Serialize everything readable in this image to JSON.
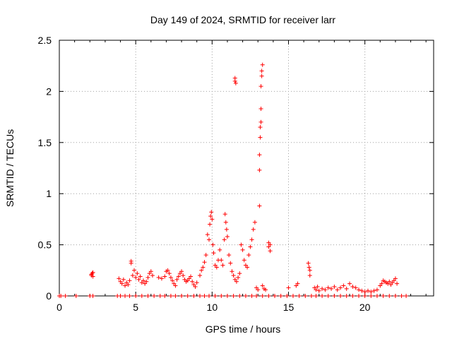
{
  "chart_data": {
    "type": "scatter",
    "title": "Day 149 of 2024, SRMTID for receiver larr",
    "xlabel": "GPS time / hours",
    "ylabel": "SRMTID / TECUs",
    "xlim": [
      0,
      24.5
    ],
    "ylim": [
      0,
      2.5
    ],
    "xticks": [
      0,
      5,
      10,
      15,
      20
    ],
    "xtick_labels": [
      "0",
      "5",
      "10",
      "15",
      "20"
    ],
    "yticks": [
      0,
      0.5,
      1,
      1.5,
      2,
      2.5
    ],
    "ytick_labels": [
      "0",
      "0.5",
      "1",
      "1.5",
      "2",
      "2.5"
    ],
    "grid": true,
    "marker": "+",
    "color": "#ff0000",
    "series": [
      {
        "name": "SRMTID",
        "points": [
          [
            0.0,
            0
          ],
          [
            0.1,
            0
          ],
          [
            0.4,
            0
          ],
          [
            1.1,
            0
          ],
          [
            2.0,
            0
          ],
          [
            2.2,
            0
          ],
          [
            2.1,
            0.2
          ],
          [
            2.1,
            0.21
          ],
          [
            2.15,
            0.22
          ],
          [
            2.2,
            0.19
          ],
          [
            2.2,
            0.23
          ],
          [
            3.8,
            0
          ],
          [
            3.9,
            0.17
          ],
          [
            4.0,
            0.14
          ],
          [
            4.1,
            0.12
          ],
          [
            4.2,
            0.16
          ],
          [
            4.3,
            0.1
          ],
          [
            4.4,
            0.13
          ],
          [
            4.5,
            0.11
          ],
          [
            4.6,
            0.15
          ],
          [
            4.7,
            0.34
          ],
          [
            4.7,
            0.32
          ],
          [
            4.8,
            0.2
          ],
          [
            4.9,
            0.25
          ],
          [
            5.0,
            0.18
          ],
          [
            5.1,
            0.22
          ],
          [
            5.2,
            0.16
          ],
          [
            5.3,
            0.19
          ],
          [
            5.4,
            0.13
          ],
          [
            5.5,
            0.15
          ],
          [
            5.6,
            0.12
          ],
          [
            5.7,
            0.14
          ],
          [
            5.8,
            0.18
          ],
          [
            5.9,
            0.22
          ],
          [
            6.0,
            0.24
          ],
          [
            6.1,
            0.2
          ],
          [
            4.0,
            0
          ],
          [
            4.3,
            0
          ],
          [
            4.6,
            0
          ],
          [
            5.0,
            0
          ],
          [
            5.4,
            0
          ],
          [
            5.8,
            0
          ],
          [
            6.2,
            0
          ],
          [
            6.6,
            0
          ],
          [
            6.9,
            0
          ],
          [
            7.3,
            0
          ],
          [
            7.6,
            0
          ],
          [
            8.0,
            0
          ],
          [
            8.4,
            0
          ],
          [
            8.8,
            0
          ],
          [
            9.2,
            0
          ],
          [
            9.5,
            0
          ],
          [
            9.8,
            0
          ],
          [
            10.2,
            0
          ],
          [
            10.6,
            0
          ],
          [
            11.0,
            0
          ],
          [
            11.4,
            0
          ],
          [
            11.8,
            0
          ],
          [
            12.2,
            0
          ],
          [
            12.6,
            0
          ],
          [
            12.9,
            0
          ],
          [
            13.3,
            0
          ],
          [
            13.7,
            0
          ],
          [
            14.1,
            0
          ],
          [
            14.5,
            0
          ],
          [
            14.9,
            0
          ],
          [
            15.3,
            0
          ],
          [
            15.7,
            0
          ],
          [
            16.1,
            0
          ],
          [
            16.5,
            0
          ],
          [
            16.8,
            0
          ],
          [
            17.2,
            0
          ],
          [
            17.6,
            0
          ],
          [
            18.0,
            0
          ],
          [
            18.4,
            0
          ],
          [
            18.8,
            0
          ],
          [
            19.2,
            0
          ],
          [
            19.6,
            0
          ],
          [
            20.0,
            0
          ],
          [
            20.4,
            0
          ],
          [
            20.8,
            0
          ],
          [
            21.2,
            0
          ],
          [
            21.6,
            0
          ],
          [
            22.0,
            0
          ],
          [
            22.4,
            0
          ],
          [
            22.7,
            0
          ],
          [
            6.5,
            0.18
          ],
          [
            6.7,
            0.17
          ],
          [
            6.9,
            0.19
          ],
          [
            7.0,
            0.24
          ],
          [
            7.1,
            0.25
          ],
          [
            7.2,
            0.22
          ],
          [
            7.3,
            0.18
          ],
          [
            7.4,
            0.15
          ],
          [
            7.5,
            0.12
          ],
          [
            7.6,
            0.1
          ],
          [
            7.7,
            0.16
          ],
          [
            7.8,
            0.19
          ],
          [
            7.9,
            0.22
          ],
          [
            8.0,
            0.24
          ],
          [
            8.1,
            0.2
          ],
          [
            8.2,
            0.16
          ],
          [
            8.3,
            0.14
          ],
          [
            8.4,
            0.15
          ],
          [
            8.5,
            0.17
          ],
          [
            8.6,
            0.19
          ],
          [
            8.7,
            0.14
          ],
          [
            8.8,
            0.11
          ],
          [
            8.9,
            0.09
          ],
          [
            9.0,
            0.13
          ],
          [
            9.2,
            0.2
          ],
          [
            9.3,
            0.25
          ],
          [
            9.4,
            0.28
          ],
          [
            9.5,
            0.33
          ],
          [
            9.6,
            0.4
          ],
          [
            9.7,
            0.6
          ],
          [
            9.8,
            0.55
          ],
          [
            9.85,
            0.7
          ],
          [
            9.9,
            0.78
          ],
          [
            9.95,
            0.82
          ],
          [
            10.0,
            0.75
          ],
          [
            10.05,
            0.5
          ],
          [
            10.1,
            0.42
          ],
          [
            10.2,
            0.3
          ],
          [
            10.3,
            0.28
          ],
          [
            10.4,
            0.35
          ],
          [
            10.5,
            0.45
          ],
          [
            10.6,
            0.35
          ],
          [
            10.7,
            0.3
          ],
          [
            10.8,
            0.55
          ],
          [
            10.85,
            0.8
          ],
          [
            10.9,
            0.72
          ],
          [
            10.95,
            0.65
          ],
          [
            11.0,
            0.58
          ],
          [
            11.1,
            0.4
          ],
          [
            11.2,
            0.32
          ],
          [
            11.3,
            0.24
          ],
          [
            11.4,
            0.2
          ],
          [
            11.5,
            0.16
          ],
          [
            11.6,
            0.14
          ],
          [
            11.7,
            0.18
          ],
          [
            11.8,
            0.22
          ],
          [
            11.9,
            0.5
          ],
          [
            12.0,
            0.45
          ],
          [
            12.1,
            0.35
          ],
          [
            12.2,
            0.3
          ],
          [
            12.3,
            0.28
          ],
          [
            12.4,
            0.4
          ],
          [
            12.5,
            0.48
          ],
          [
            12.6,
            0.55
          ],
          [
            12.7,
            0.65
          ],
          [
            12.8,
            0.72
          ],
          [
            11.5,
            2.13
          ],
          [
            11.5,
            2.1
          ],
          [
            11.55,
            2.08
          ],
          [
            12.9,
            0.08
          ],
          [
            13.0,
            0.06
          ],
          [
            13.1,
            0.88
          ],
          [
            13.1,
            1.23
          ],
          [
            13.1,
            1.38
          ],
          [
            13.15,
            1.55
          ],
          [
            13.15,
            1.65
          ],
          [
            13.2,
            1.7
          ],
          [
            13.2,
            1.83
          ],
          [
            13.2,
            2.05
          ],
          [
            13.25,
            2.15
          ],
          [
            13.25,
            2.2
          ],
          [
            13.3,
            2.26
          ],
          [
            13.3,
            0.1
          ],
          [
            13.4,
            0.07
          ],
          [
            13.5,
            0.06
          ],
          [
            13.7,
            0.52
          ],
          [
            13.7,
            0.48
          ],
          [
            13.8,
            0.5
          ],
          [
            13.8,
            0.44
          ],
          [
            15.0,
            0.08
          ],
          [
            15.5,
            0.1
          ],
          [
            15.6,
            0.12
          ],
          [
            16.3,
            0.32
          ],
          [
            16.35,
            0.28
          ],
          [
            16.4,
            0.25
          ],
          [
            16.4,
            0.2
          ],
          [
            16.7,
            0.08
          ],
          [
            16.8,
            0.06
          ],
          [
            16.9,
            0.09
          ],
          [
            17.0,
            0.05
          ],
          [
            17.2,
            0.07
          ],
          [
            17.4,
            0.06
          ],
          [
            17.6,
            0.08
          ],
          [
            17.8,
            0.07
          ],
          [
            18.0,
            0.09
          ],
          [
            18.2,
            0.06
          ],
          [
            18.4,
            0.08
          ],
          [
            18.6,
            0.1
          ],
          [
            18.8,
            0.07
          ],
          [
            19.0,
            0.12
          ],
          [
            19.2,
            0.09
          ],
          [
            19.4,
            0.08
          ],
          [
            19.6,
            0.06
          ],
          [
            19.8,
            0.05
          ],
          [
            20.0,
            0.04
          ],
          [
            20.2,
            0.05
          ],
          [
            20.4,
            0.04
          ],
          [
            20.6,
            0.05
          ],
          [
            20.8,
            0.06
          ],
          [
            21.0,
            0.1
          ],
          [
            21.1,
            0.12
          ],
          [
            21.2,
            0.15
          ],
          [
            21.3,
            0.14
          ],
          [
            21.4,
            0.13
          ],
          [
            21.5,
            0.12
          ],
          [
            21.6,
            0.14
          ],
          [
            21.7,
            0.11
          ],
          [
            21.8,
            0.13
          ],
          [
            21.9,
            0.15
          ],
          [
            22.0,
            0.17
          ],
          [
            22.1,
            0.12
          ]
        ]
      }
    ]
  }
}
